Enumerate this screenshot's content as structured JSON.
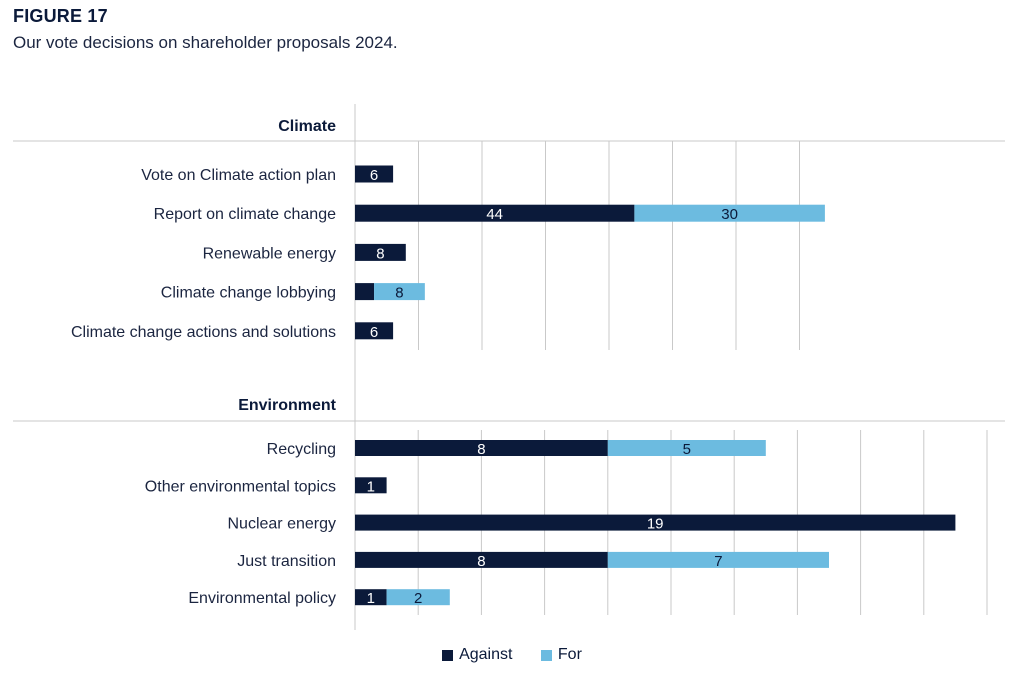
{
  "figure": {
    "title": "FIGURE 17",
    "subtitle": "Our vote decisions on shareholder proposals 2024."
  },
  "colors": {
    "against": "#0b1a3a",
    "for": "#6cbbe0",
    "grid": "#c9c9c9"
  },
  "chart_data": {
    "type": "bar",
    "orientation": "horizontal",
    "stacked": true,
    "grid": true,
    "legend_position": "bottom",
    "legend": [
      "Against",
      "For"
    ],
    "groups": [
      {
        "name": "Climate",
        "categories": [
          "Vote on Climate action plan",
          "Report on climate change",
          "Renewable energy",
          "Climate change lobbying",
          "Climate change actions and solutions"
        ],
        "series": [
          {
            "name": "Against",
            "values": [
              6,
              44,
              8,
              3,
              6
            ],
            "labels": [
              "6",
              "44",
              "8",
              "",
              "6"
            ]
          },
          {
            "name": "For",
            "values": [
              0,
              30,
              0,
              8,
              0
            ],
            "labels": [
              "",
              "30",
              "",
              "8",
              ""
            ]
          }
        ],
        "xlim": [
          0,
          80
        ]
      },
      {
        "name": "Environment",
        "categories": [
          "Recycling",
          "Other environmental topics",
          "Nuclear energy",
          "Just transition",
          "Environmental policy"
        ],
        "series": [
          {
            "name": "Against",
            "values": [
              8,
              1,
              19,
              8,
              1
            ],
            "labels": [
              "8",
              "1",
              "19",
              "8",
              "1"
            ]
          },
          {
            "name": "For",
            "values": [
              5,
              0,
              0,
              7,
              2
            ],
            "labels": [
              "5",
              "",
              "",
              "7",
              "2"
            ]
          }
        ],
        "xlim": [
          0,
          20
        ]
      }
    ]
  }
}
